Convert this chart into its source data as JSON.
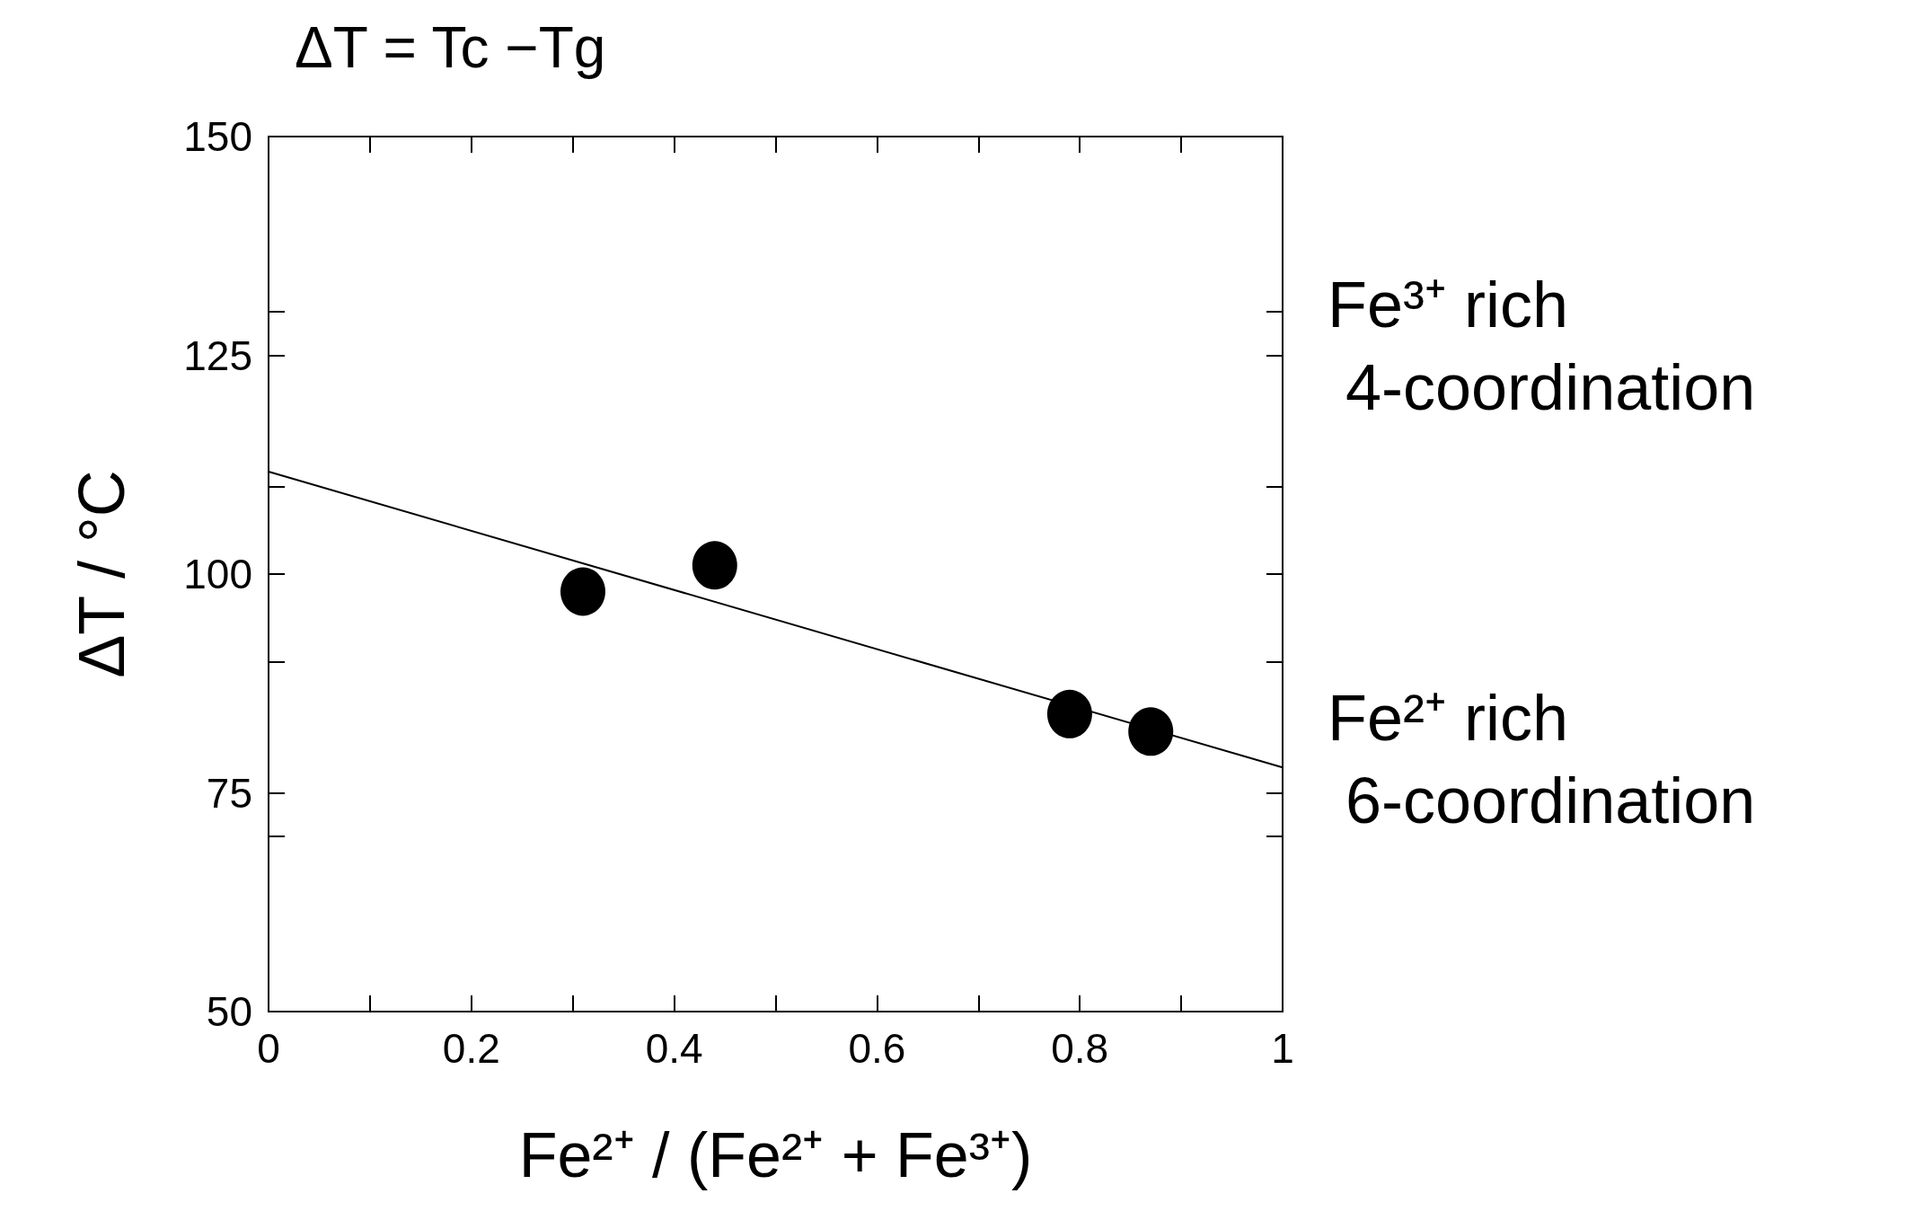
{
  "chart_data": {
    "type": "scatter",
    "title": "ΔT = Tc −Tg",
    "xlabel": "Fe²⁺ / (Fe²⁺ + Fe³⁺)",
    "ylabel": "ΔT / °C",
    "xlim": [
      0,
      1
    ],
    "ylim": [
      50,
      150
    ],
    "xticks": [
      0,
      0.2,
      0.4,
      0.6,
      0.8,
      1
    ],
    "yticks": [
      50,
      75,
      100,
      125,
      150
    ],
    "marker": "circle",
    "series": [
      {
        "color": "#000000",
        "x": [
          0.31,
          0.44,
          0.79,
          0.87
        ],
        "values": [
          98,
          101,
          84,
          82
        ]
      },
      {
        "type": "line",
        "color": "#000000",
        "x": [
          0,
          1
        ],
        "values": [
          111.7,
          77.9
        ],
        "marker": "none",
        "line_style": "solid"
      }
    ],
    "annotations": [
      "Fe³⁺ rich\n 4-coordination",
      "Fe²⁺ rich\n 6-coordination"
    ]
  }
}
